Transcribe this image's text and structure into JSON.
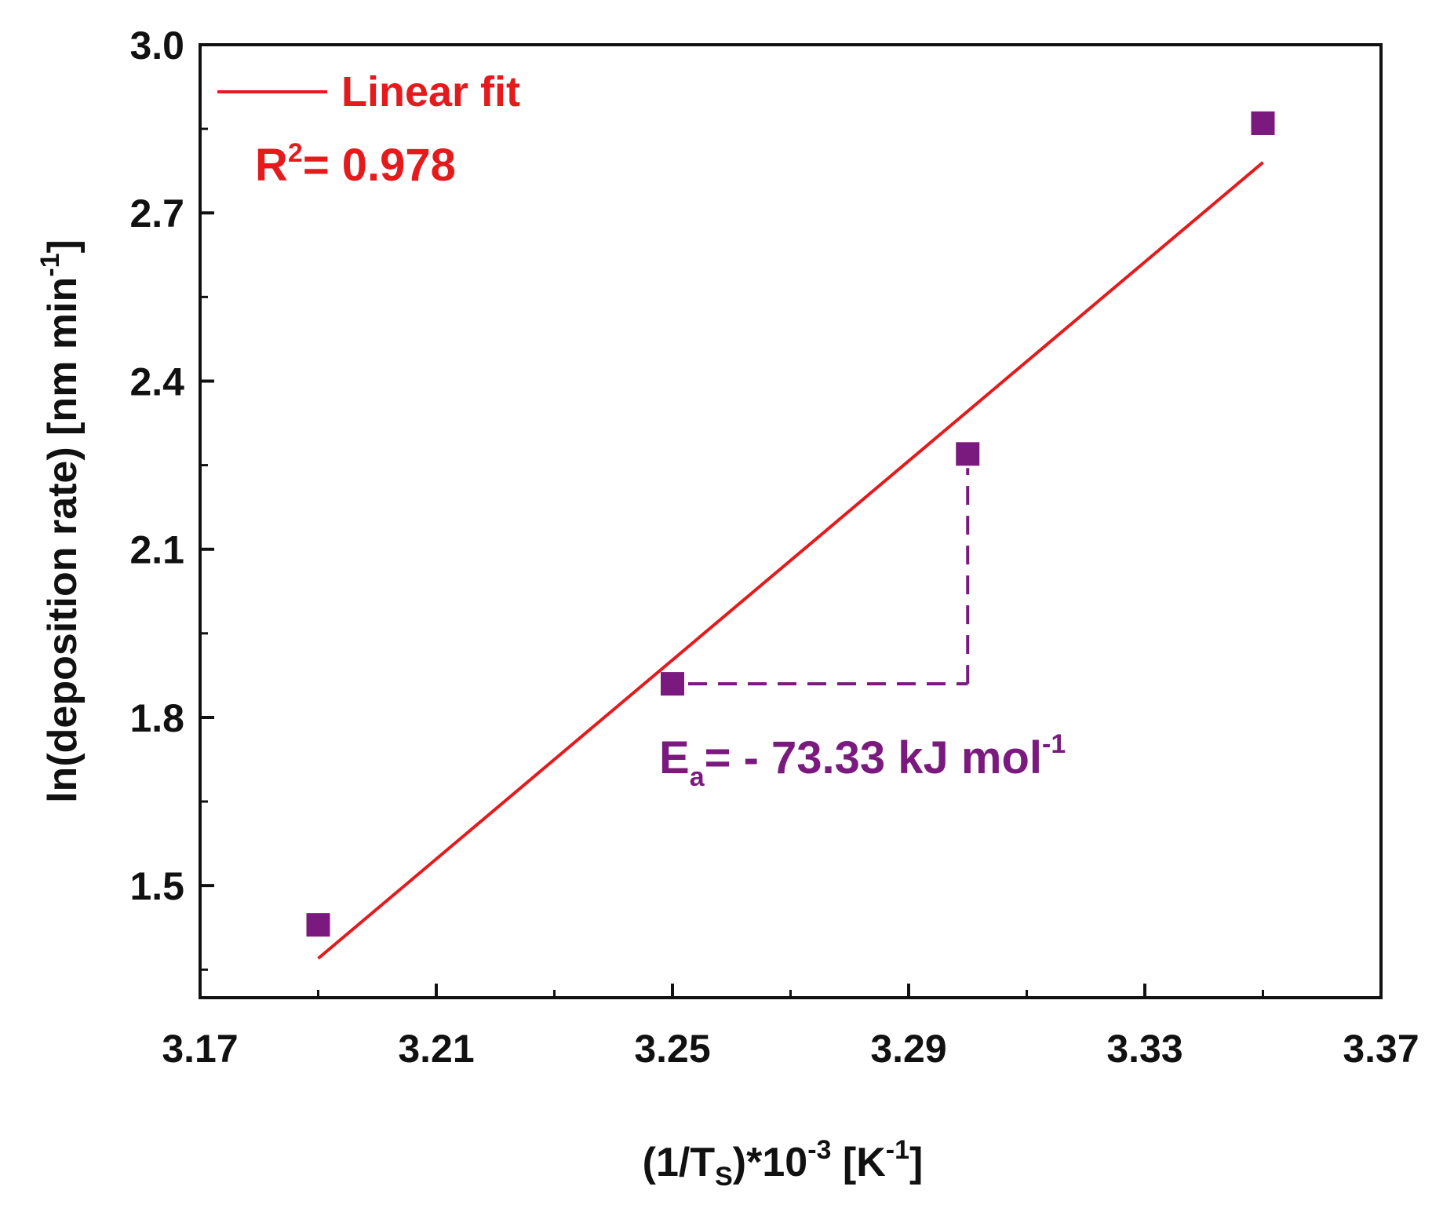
{
  "chart_data": {
    "type": "scatter",
    "title": "",
    "xlabel": {
      "main": "(1/T",
      "sub": "S",
      "mid": ")*10",
      "sup": "-3",
      "tail": " [K",
      "sup2": "-1",
      "end": "]"
    },
    "ylabel": {
      "main": "ln(deposition rate) [nm min",
      "sup": "-1",
      "end": "]"
    },
    "xlim": [
      3.17,
      3.37
    ],
    "ylim": [
      1.3,
      3.0
    ],
    "xticks": [
      "3.17",
      "3.21",
      "3.25",
      "3.29",
      "3.33",
      "3.37"
    ],
    "yticks": [
      "1.5",
      "1.8",
      "2.1",
      "2.4",
      "2.7",
      "3.0"
    ],
    "grid": false,
    "legend_position": "top-left",
    "series": [
      {
        "name": "",
        "marker": "square",
        "color": "#7b1a7e",
        "points": [
          {
            "x": 3.19,
            "y": 1.43
          },
          {
            "x": 3.25,
            "y": 1.86
          },
          {
            "x": 3.3,
            "y": 2.27
          },
          {
            "x": 3.35,
            "y": 2.86
          }
        ]
      },
      {
        "name": "Linear fit",
        "type": "line",
        "color": "#e41a1c",
        "points": [
          {
            "x": 3.19,
            "y": 1.37
          },
          {
            "x": 3.35,
            "y": 2.79
          }
        ]
      }
    ],
    "annotations": [
      {
        "label": "R",
        "sup": "2",
        "rest": "= 0.978",
        "color": "#e41a1c"
      },
      {
        "label": "E",
        "sub": "a",
        "rest": "= - 73.33 kJ mol",
        "sup": "-1",
        "color": "#7b1a7e"
      }
    ],
    "guide_lines": {
      "style": "dashed",
      "color": "#7b1a7e",
      "horizontal": {
        "x_from": 3.25,
        "x_to": 3.3,
        "y": 1.86
      },
      "vertical": {
        "x": 3.3,
        "y_from": 1.86,
        "y_to": 2.27
      }
    }
  }
}
